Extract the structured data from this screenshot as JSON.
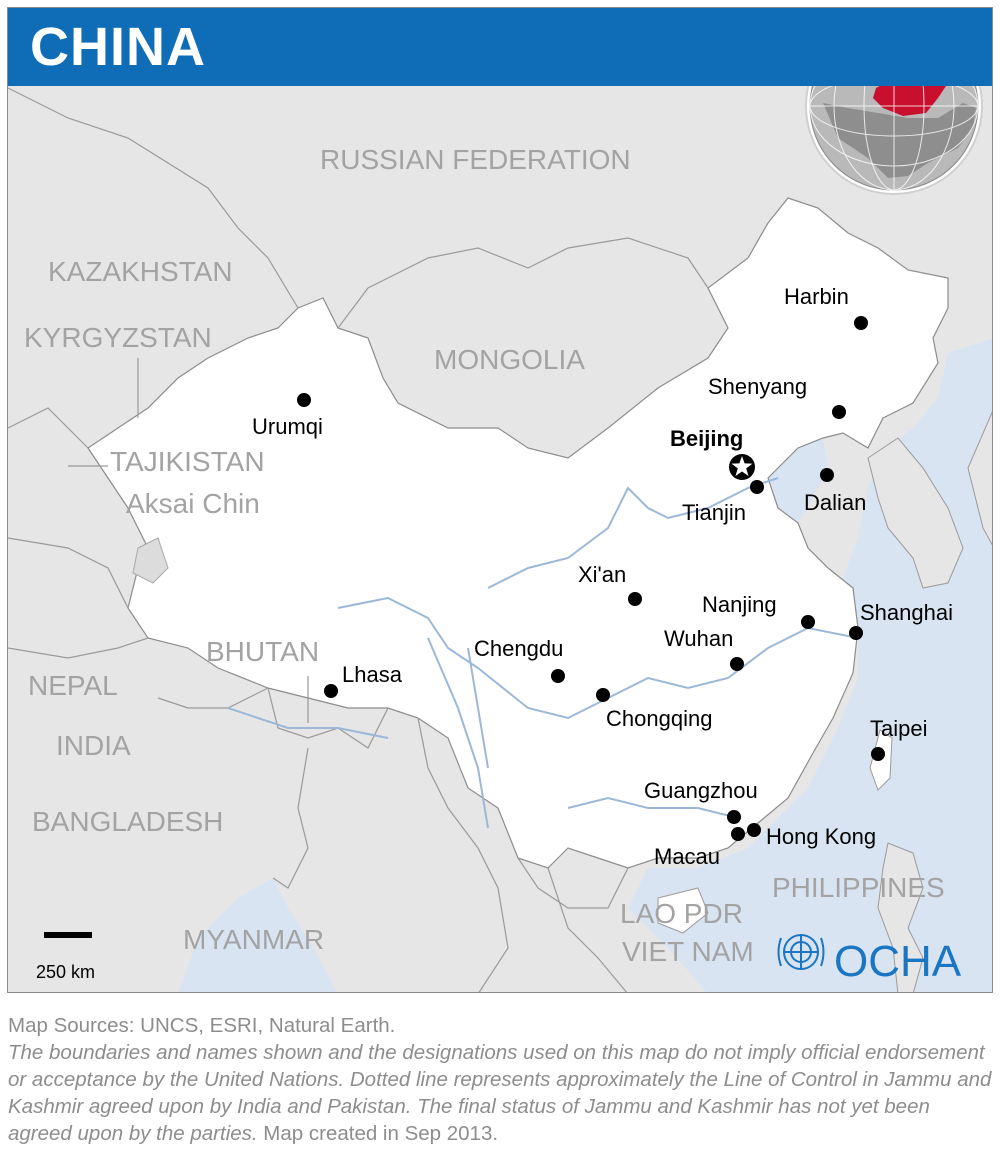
{
  "title": "CHINA",
  "colors": {
    "header": "#0e6db6",
    "china_fill": "#ffffff",
    "land_fill": "#e6e6e6",
    "water": "#d9e4f2",
    "river": "#9cb8d8",
    "globe_highlight": "#c8102e",
    "ocha_blue": "#1a76c2"
  },
  "countries": [
    {
      "id": "russia",
      "label": "RUSSIAN FEDERATION"
    },
    {
      "id": "kazakhstan",
      "label": "KAZAKHSTAN"
    },
    {
      "id": "kyrgyzstan",
      "label": "KYRGYZSTAN"
    },
    {
      "id": "mongolia",
      "label": "MONGOLIA"
    },
    {
      "id": "tajikistan",
      "label": "TAJIKISTAN"
    },
    {
      "id": "aksai",
      "label": "Aksai Chin"
    },
    {
      "id": "bhutan",
      "label": "BHUTAN"
    },
    {
      "id": "nepal",
      "label": "NEPAL"
    },
    {
      "id": "india",
      "label": "INDIA"
    },
    {
      "id": "bangladesh",
      "label": "BANGLADESH"
    },
    {
      "id": "myanmar",
      "label": "MYANMAR"
    },
    {
      "id": "lao",
      "label": "LAO PDR"
    },
    {
      "id": "vietnam",
      "label": "VIET NAM"
    },
    {
      "id": "philippines",
      "label": "PHILIPPINES"
    }
  ],
  "cities": [
    {
      "id": "beijing",
      "label": "Beijing",
      "capital": true
    },
    {
      "id": "harbin",
      "label": "Harbin"
    },
    {
      "id": "shenyang",
      "label": "Shenyang"
    },
    {
      "id": "dalian",
      "label": "Dalian"
    },
    {
      "id": "tianjin",
      "label": "Tianjin"
    },
    {
      "id": "urumqi",
      "label": "Urumqi"
    },
    {
      "id": "xian",
      "label": "Xi'an"
    },
    {
      "id": "nanjing",
      "label": "Nanjing"
    },
    {
      "id": "shanghai",
      "label": "Shanghai"
    },
    {
      "id": "wuhan",
      "label": "Wuhan"
    },
    {
      "id": "chengdu",
      "label": "Chengdu"
    },
    {
      "id": "chongqing",
      "label": "Chongqing"
    },
    {
      "id": "lhasa",
      "label": "Lhasa"
    },
    {
      "id": "taipei",
      "label": "Taipei"
    },
    {
      "id": "guangzhou",
      "label": "Guangzhou"
    },
    {
      "id": "hongkong",
      "label": "Hong Kong"
    },
    {
      "id": "macau",
      "label": "Macau"
    }
  ],
  "scale_bar": {
    "label": "250 km"
  },
  "logo": {
    "text": "OCHA",
    "icon": "un-emblem-icon"
  },
  "footer": {
    "sources": "Map Sources: UNCS, ESRI, Natural Earth.",
    "disclaimer": "The boundaries and names shown and the designations used on this map do not imply official endorsement or acceptance by the United Nations. Dotted line represents approximately the Line of Control in Jammu and Kashmir agreed upon by India and Pakistan. The final status of Jammu and Kashmir has not yet been agreed upon by the parties.",
    "created": " Map created in Sep 2013."
  }
}
